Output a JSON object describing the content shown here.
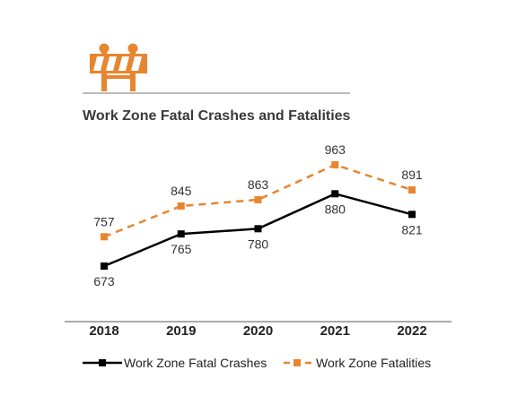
{
  "colors": {
    "accent": "#E8852F",
    "crashes": "#000000",
    "fatalities": "#E8852F",
    "axis": "#555555",
    "title_rule": "#777777"
  },
  "icons": {
    "logo": "road-barricade-icon"
  },
  "chart_data": {
    "type": "line",
    "title": "Work Zone Fatal Crashes and Fatalities",
    "categories": [
      "2018",
      "2019",
      "2020",
      "2021",
      "2022"
    ],
    "series": [
      {
        "name": "Work Zone Fatal Crashes",
        "values": [
          673,
          765,
          780,
          880,
          821
        ],
        "labels": [
          "673",
          "765",
          "780",
          "880",
          "821"
        ],
        "style": "solid"
      },
      {
        "name": "Work Zone Fatalities",
        "values": [
          757,
          845,
          863,
          963,
          891
        ],
        "labels": [
          "757",
          "845",
          "863",
          "963",
          "891"
        ],
        "style": "dashed"
      }
    ],
    "ylim": [
      550,
      1050
    ],
    "grid": false,
    "legend_position": "bottom"
  }
}
